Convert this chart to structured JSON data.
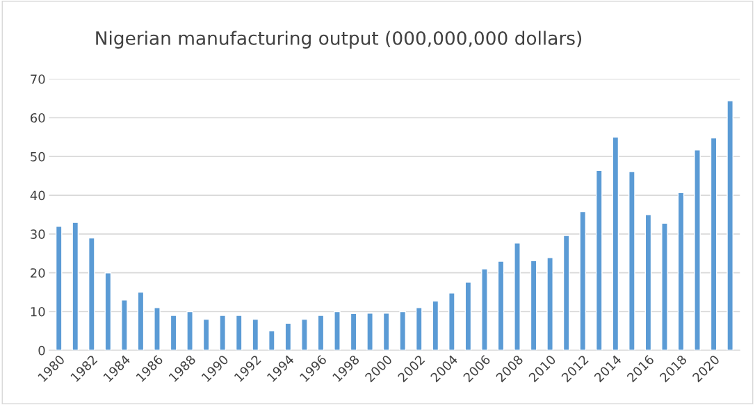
{
  "chart_data": {
    "type": "bar",
    "title": "Nigerian manufacturing output (000,000,000 dollars)",
    "categories": [
      "1980",
      null,
      "1982",
      null,
      "1984",
      null,
      "1986",
      null,
      "1988",
      null,
      "1990",
      null,
      "1992",
      null,
      "1994",
      null,
      "1996",
      null,
      "1998",
      null,
      "2000",
      null,
      "2002",
      null,
      "2004",
      null,
      "2006",
      null,
      "2008",
      null,
      "2010",
      null,
      "2012",
      null,
      "2014",
      null,
      "2016",
      null,
      "2018",
      null,
      "2020",
      null
    ],
    "values": [
      32,
      33,
      29,
      20,
      13,
      15,
      11,
      9,
      10,
      8,
      9,
      9,
      8,
      5,
      7,
      8,
      9,
      10,
      9.5,
      9.6,
      9.6,
      10,
      11,
      12.7,
      14.8,
      17.6,
      21,
      23,
      27.7,
      23.1,
      23.9,
      29.6,
      35.8,
      46.4,
      55,
      46.1,
      35,
      32.8,
      40.7,
      51.7,
      54.8,
      64.4
    ],
    "color": "#5b9bd5",
    "ylim": [
      0,
      70
    ],
    "yticks": [
      0,
      10,
      20,
      30,
      40,
      50,
      60,
      70
    ],
    "grid": "y"
  }
}
